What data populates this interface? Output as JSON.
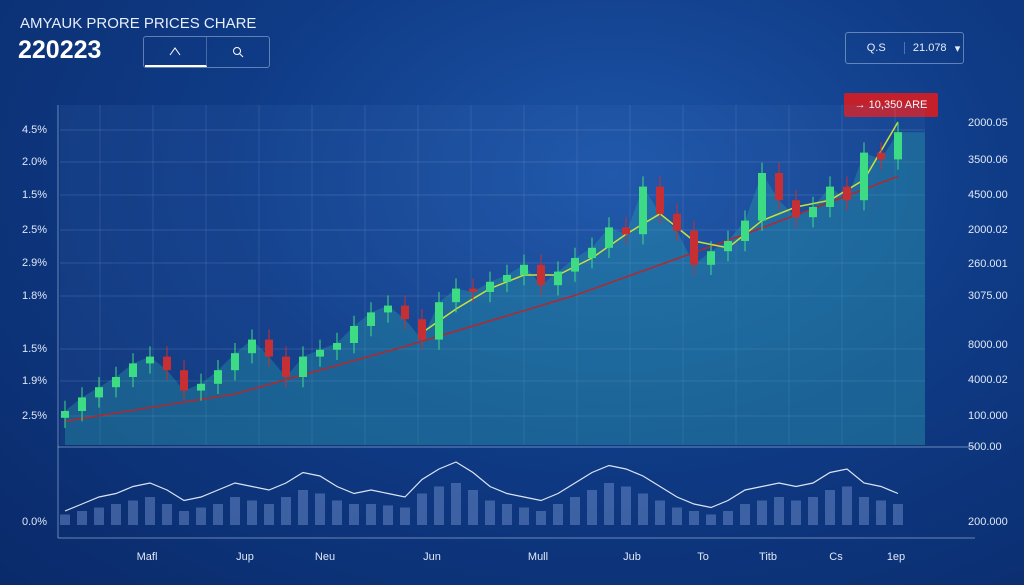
{
  "header": {
    "title": "AMYAUK PRORE PRICES CHARE",
    "value": "220223"
  },
  "controls": {
    "left_field": "Q.S",
    "right_field": "21.078",
    "badge": "10,350 ARE"
  },
  "axis_labels": {
    "left": [
      "4.5%",
      "2.0%",
      "1.5%",
      "2.5%",
      "2.9%",
      "1.8%",
      "1.5%",
      "1.9%",
      "2.5%",
      "0.0%"
    ],
    "right": [
      "2000.05",
      "3500.06",
      "4500.00",
      "2000.02",
      "260.001",
      "3075.00",
      "8000.00",
      "4000.02",
      "100.000",
      "500.00",
      "200.000"
    ],
    "bottom": [
      "Mafl",
      "Jup",
      "Neu",
      "Jun",
      "Mull",
      "Jub",
      "To",
      "Titb",
      "Cs",
      "1ep"
    ]
  },
  "chart_data": {
    "type": "candlestick",
    "ylim": [
      0,
      100
    ],
    "vlim": [
      0,
      100
    ],
    "up_color": "#3ddc84",
    "down_color": "#c62f33",
    "open": [
      8,
      10,
      14,
      17,
      20,
      24,
      26,
      22,
      16,
      18,
      22,
      27,
      31,
      26,
      20,
      26,
      28,
      30,
      35,
      39,
      41,
      37,
      31,
      42,
      46,
      45,
      48,
      50,
      53,
      47,
      51,
      55,
      58,
      64,
      62,
      76,
      68,
      63,
      53,
      57,
      60,
      66,
      80,
      72,
      67,
      70,
      76,
      72,
      86,
      84
    ],
    "high": [
      13,
      17,
      20,
      23,
      27,
      29,
      29,
      25,
      21,
      25,
      30,
      34,
      34,
      29,
      29,
      31,
      33,
      38,
      42,
      44,
      44,
      40,
      45,
      49,
      49,
      51,
      53,
      56,
      56,
      54,
      58,
      61,
      67,
      67,
      79,
      79,
      71,
      66,
      60,
      63,
      69,
      83,
      83,
      75,
      73,
      79,
      79,
      89,
      89,
      95
    ],
    "low": [
      5,
      7,
      11,
      14,
      17,
      21,
      19,
      13,
      13,
      15,
      19,
      24,
      23,
      17,
      17,
      23,
      25,
      27,
      32,
      36,
      34,
      28,
      28,
      39,
      42,
      42,
      45,
      47,
      44,
      44,
      48,
      52,
      55,
      59,
      59,
      65,
      60,
      50,
      50,
      54,
      57,
      63,
      69,
      64,
      64,
      67,
      69,
      69,
      81,
      81
    ],
    "close": [
      10,
      14,
      17,
      20,
      24,
      26,
      22,
      16,
      18,
      22,
      27,
      31,
      26,
      20,
      26,
      28,
      30,
      35,
      39,
      41,
      37,
      31,
      42,
      46,
      45,
      48,
      50,
      53,
      47,
      51,
      55,
      58,
      64,
      62,
      76,
      68,
      63,
      53,
      57,
      60,
      66,
      80,
      72,
      67,
      70,
      76,
      72,
      86,
      84,
      92
    ],
    "volume": [
      15,
      20,
      25,
      30,
      35,
      40,
      30,
      20,
      25,
      30,
      40,
      35,
      30,
      40,
      50,
      45,
      35,
      30,
      30,
      28,
      25,
      45,
      55,
      60,
      50,
      35,
      30,
      25,
      20,
      30,
      40,
      50,
      60,
      55,
      45,
      35,
      25,
      20,
      15,
      20,
      30,
      35,
      40,
      35,
      40,
      50,
      55,
      40,
      35,
      30
    ],
    "oscillator": [
      20,
      30,
      40,
      45,
      55,
      60,
      50,
      35,
      40,
      50,
      60,
      55,
      50,
      60,
      75,
      70,
      55,
      45,
      50,
      45,
      40,
      65,
      80,
      90,
      75,
      55,
      45,
      40,
      35,
      45,
      60,
      75,
      85,
      80,
      70,
      55,
      40,
      30,
      25,
      35,
      50,
      55,
      60,
      55,
      60,
      75,
      80,
      60,
      55,
      45
    ],
    "trend": {
      "color": "#b3282d",
      "x": [
        0,
        10,
        20,
        30,
        40,
        49
      ],
      "values": [
        7,
        15,
        29,
        44,
        62,
        79
      ]
    },
    "ma": {
      "color": "#c8e23a",
      "x": [
        21,
        23,
        25,
        27,
        29,
        31,
        33,
        35,
        37,
        39,
        41,
        43,
        45,
        47,
        49
      ],
      "values": [
        33,
        40,
        46,
        50,
        50,
        55,
        62,
        68,
        60,
        58,
        66,
        70,
        72,
        78,
        95
      ]
    }
  }
}
